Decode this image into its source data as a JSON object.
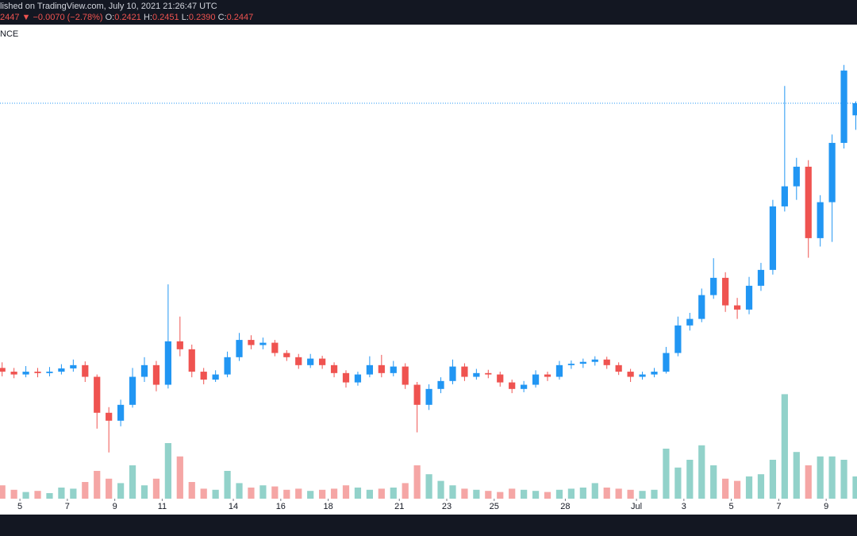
{
  "header": {
    "published": "lished on TradingView.com, July 10, 2021 21:26:47 UTC",
    "last": "2447",
    "arrow": "▼",
    "change": "−0.0070 (−2.78%)",
    "ohlc": [
      {
        "label": "O:",
        "value": "0.2421"
      },
      {
        "label": "H:",
        "value": "0.2451"
      },
      {
        "label": "L:",
        "value": "0.2390"
      },
      {
        "label": "C:",
        "value": "0.2447"
      }
    ],
    "exchange": "NCE"
  },
  "chart_data": {
    "type": "candlestick",
    "x": [
      4.25,
      4.75,
      5.25,
      5.75,
      6.25,
      6.75,
      7.25,
      7.75,
      8.25,
      8.75,
      9.25,
      9.75,
      10.25,
      10.75,
      11.25,
      11.75,
      12.25,
      12.75,
      13.25,
      13.75,
      14.25,
      14.75,
      15.25,
      15.75,
      16.25,
      16.75,
      17.25,
      17.75,
      18.25,
      18.75,
      19.25,
      19.75,
      20.25,
      20.75,
      21.25,
      21.75,
      22.25,
      22.75,
      23.25,
      23.75,
      24.25,
      24.75,
      25.25,
      25.75,
      26.25,
      26.75,
      27.25,
      27.75,
      28.25,
      28.75,
      29.25,
      29.75,
      30.25,
      30.75,
      31.25,
      31.75,
      32.25,
      32.75,
      33.25,
      33.75,
      34.25,
      34.75,
      35.25,
      35.75,
      36.25,
      36.75,
      37.25,
      37.75,
      38.25,
      38.75,
      39.25,
      39.75,
      40.25
    ],
    "open": [
      0.188,
      0.1872,
      0.1866,
      0.1872,
      0.1869,
      0.1872,
      0.1879,
      0.1886,
      0.1861,
      0.1784,
      0.1767,
      0.1801,
      0.1861,
      0.1886,
      0.1844,
      0.1937,
      0.192,
      0.1872,
      0.1855,
      0.1866,
      0.1903,
      0.194,
      0.1929,
      0.1934,
      0.1912,
      0.1903,
      0.1886,
      0.19,
      0.1886,
      0.1869,
      0.1849,
      0.1866,
      0.1886,
      0.1869,
      0.1883,
      0.1844,
      0.1801,
      0.1835,
      0.1852,
      0.1883,
      0.1861,
      0.1869,
      0.1866,
      0.1849,
      0.1835,
      0.1844,
      0.1866,
      0.1861,
      0.1886,
      0.1889,
      0.1893,
      0.1898,
      0.1886,
      0.1872,
      0.1861,
      0.1866,
      0.1872,
      0.1912,
      0.1971,
      0.1985,
      0.2036,
      0.2073,
      0.2014,
      0.2005,
      0.2056,
      0.209,
      0.2226,
      0.2269,
      0.2311,
      0.2158,
      0.2235,
      0.2362,
      0.2421
    ],
    "high": [
      0.1892,
      0.188,
      0.1884,
      0.188,
      0.1882,
      0.1888,
      0.1898,
      0.1894,
      0.1866,
      0.1796,
      0.1812,
      0.188,
      0.1903,
      0.1895,
      0.2059,
      0.199,
      0.193,
      0.188,
      0.1875,
      0.1915,
      0.1955,
      0.195,
      0.1945,
      0.194,
      0.1918,
      0.191,
      0.191,
      0.1906,
      0.1892,
      0.1875,
      0.1872,
      0.1905,
      0.1908,
      0.1895,
      0.189,
      0.185,
      0.1845,
      0.186,
      0.1898,
      0.189,
      0.1878,
      0.1876,
      0.1872,
      0.1855,
      0.1852,
      0.1875,
      0.1872,
      0.1895,
      0.1896,
      0.19,
      0.1905,
      0.1904,
      0.1892,
      0.1878,
      0.1872,
      0.188,
      0.1925,
      0.199,
      0.1998,
      0.205,
      0.2115,
      0.2085,
      0.203,
      0.2075,
      0.2105,
      0.224,
      0.2484,
      0.233,
      0.2325,
      0.225,
      0.238,
      0.2529,
      0.2451
    ],
    "low": [
      0.1862,
      0.1858,
      0.186,
      0.186,
      0.1862,
      0.1866,
      0.1872,
      0.185,
      0.175,
      0.1699,
      0.1755,
      0.1795,
      0.185,
      0.183,
      0.1836,
      0.1905,
      0.186,
      0.1845,
      0.185,
      0.186,
      0.1895,
      0.192,
      0.192,
      0.1905,
      0.1895,
      0.1878,
      0.188,
      0.1878,
      0.186,
      0.1838,
      0.1842,
      0.186,
      0.186,
      0.1862,
      0.1835,
      0.1742,
      0.179,
      0.1826,
      0.1845,
      0.1852,
      0.1855,
      0.1858,
      0.184,
      0.1826,
      0.1828,
      0.1838,
      0.1852,
      0.1855,
      0.1878,
      0.188,
      0.1885,
      0.1878,
      0.1865,
      0.185,
      0.1855,
      0.186,
      0.1868,
      0.1905,
      0.196,
      0.1978,
      0.2028,
      0.2,
      0.1985,
      0.1995,
      0.2045,
      0.208,
      0.2215,
      0.224,
      0.2116,
      0.214,
      0.215,
      0.235,
      0.239
    ],
    "close": [
      0.1872,
      0.1866,
      0.1872,
      0.1869,
      0.1872,
      0.1879,
      0.1886,
      0.1861,
      0.1784,
      0.1767,
      0.1801,
      0.1861,
      0.1886,
      0.1844,
      0.1937,
      0.192,
      0.1872,
      0.1855,
      0.1866,
      0.1903,
      0.194,
      0.1929,
      0.1934,
      0.1912,
      0.1903,
      0.1886,
      0.19,
      0.1886,
      0.1869,
      0.1849,
      0.1866,
      0.1886,
      0.1869,
      0.1883,
      0.1844,
      0.1801,
      0.1835,
      0.1852,
      0.1883,
      0.1861,
      0.1869,
      0.1866,
      0.1849,
      0.1835,
      0.1844,
      0.1866,
      0.1861,
      0.1886,
      0.1889,
      0.1893,
      0.1898,
      0.1886,
      0.1872,
      0.1861,
      0.1866,
      0.1872,
      0.1912,
      0.1971,
      0.1985,
      0.2036,
      0.2073,
      0.2014,
      0.2005,
      0.2056,
      0.209,
      0.2226,
      0.2269,
      0.2311,
      0.2158,
      0.2235,
      0.2362,
      0.2517,
      0.2447
    ],
    "volume": [
      12,
      8,
      6,
      7,
      5,
      10,
      9,
      15,
      25,
      18,
      14,
      30,
      12,
      18,
      50,
      38,
      15,
      9,
      8,
      25,
      14,
      10,
      12,
      11,
      8,
      9,
      7,
      8,
      9,
      12,
      10,
      8,
      9,
      10,
      14,
      30,
      22,
      16,
      12,
      9,
      8,
      7,
      6,
      9,
      8,
      7,
      6,
      8,
      9,
      10,
      14,
      10,
      9,
      8,
      7,
      8,
      45,
      28,
      35,
      48,
      30,
      18,
      16,
      20,
      22,
      35,
      94,
      42,
      30,
      38,
      38,
      35,
      20
    ],
    "up_color": "#2196f3",
    "down_color": "#ef5350",
    "volume_up_color": "#92d2ca",
    "volume_down_color": "#f5a6a5",
    "xlim": [
      4.16,
      40.3
    ],
    "xticks": [
      5,
      7,
      9,
      11,
      14,
      16,
      18,
      21,
      23,
      25,
      28,
      {
        "value": 31,
        "label": "Jul"
      },
      {
        "value": 33,
        "label": "3"
      },
      {
        "value": 35,
        "label": "5"
      },
      {
        "value": 37,
        "label": "7"
      },
      {
        "value": 39,
        "label": "9"
      }
    ],
    "ylim": [
      0.16,
      0.26
    ],
    "volume_lim": [
      0,
      100
    ],
    "price_line": true
  }
}
